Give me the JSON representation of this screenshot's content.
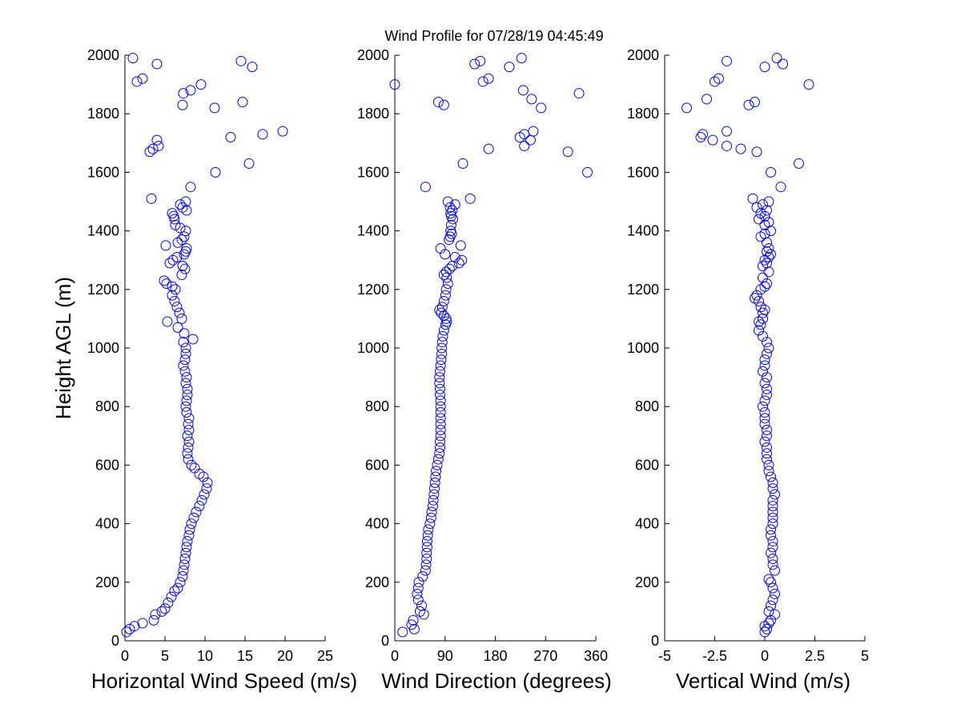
{
  "figure": {
    "title": "Wind Profile for  07/28/19 04:45:49",
    "ylabel": "Height AGL (m)",
    "marker_color": "#0000ff"
  },
  "chart_data": [
    {
      "type": "scatter",
      "xlabel": "Horizontal Wind Speed (m/s)",
      "ylabel": "Height AGL (m)",
      "xlim": [
        0,
        25
      ],
      "ylim": [
        0,
        2000
      ],
      "xticks": [
        "0",
        "5",
        "10",
        "15",
        "20",
        "25"
      ],
      "xtick_values": [
        0,
        5,
        10,
        15,
        20,
        25
      ],
      "yticks": [
        "0",
        "200",
        "400",
        "600",
        "800",
        "1000",
        "1200",
        "1400",
        "1600",
        "1800",
        "2000"
      ],
      "ytick_values": [
        0,
        200,
        400,
        600,
        800,
        1000,
        1200,
        1400,
        1600,
        1800,
        2000
      ],
      "grid": false,
      "points": [
        [
          0.2,
          30
        ],
        [
          0.6,
          40
        ],
        [
          1.2,
          50
        ],
        [
          2.2,
          60
        ],
        [
          3.6,
          70
        ],
        [
          3.8,
          90
        ],
        [
          4.6,
          100
        ],
        [
          5.0,
          110
        ],
        [
          5.4,
          130
        ],
        [
          5.8,
          150
        ],
        [
          6.2,
          170
        ],
        [
          6.6,
          180
        ],
        [
          6.9,
          200
        ],
        [
          7.2,
          220
        ],
        [
          7.3,
          240
        ],
        [
          7.4,
          260
        ],
        [
          7.5,
          280
        ],
        [
          7.6,
          300
        ],
        [
          7.7,
          320
        ],
        [
          7.8,
          340
        ],
        [
          8.0,
          360
        ],
        [
          8.1,
          380
        ],
        [
          8.3,
          400
        ],
        [
          8.6,
          420
        ],
        [
          8.9,
          440
        ],
        [
          9.3,
          460
        ],
        [
          9.6,
          480
        ],
        [
          9.9,
          500
        ],
        [
          10.2,
          520
        ],
        [
          10.3,
          540
        ],
        [
          9.8,
          560
        ],
        [
          9.3,
          570
        ],
        [
          8.7,
          590
        ],
        [
          8.3,
          600
        ],
        [
          7.9,
          620
        ],
        [
          7.8,
          640
        ],
        [
          7.9,
          660
        ],
        [
          8.0,
          680
        ],
        [
          7.8,
          700
        ],
        [
          8.0,
          720
        ],
        [
          7.9,
          740
        ],
        [
          8.0,
          760
        ],
        [
          7.7,
          780
        ],
        [
          7.6,
          800
        ],
        [
          7.7,
          820
        ],
        [
          7.8,
          840
        ],
        [
          7.8,
          860
        ],
        [
          7.6,
          880
        ],
        [
          7.7,
          900
        ],
        [
          7.5,
          920
        ],
        [
          7.3,
          940
        ],
        [
          7.5,
          960
        ],
        [
          7.6,
          980
        ],
        [
          7.6,
          1000
        ],
        [
          7.3,
          1020
        ],
        [
          8.5,
          1030
        ],
        [
          7.4,
          1050
        ],
        [
          6.6,
          1070
        ],
        [
          5.3,
          1090
        ],
        [
          7.1,
          1100
        ],
        [
          6.8,
          1120
        ],
        [
          6.5,
          1140
        ],
        [
          6.2,
          1160
        ],
        [
          5.9,
          1180
        ],
        [
          6.3,
          1200
        ],
        [
          5.9,
          1210
        ],
        [
          5.2,
          1220
        ],
        [
          4.9,
          1230
        ],
        [
          7.1,
          1250
        ],
        [
          7.5,
          1270
        ],
        [
          7.2,
          1280
        ],
        [
          5.6,
          1290
        ],
        [
          6.0,
          1300
        ],
        [
          6.5,
          1310
        ],
        [
          7.4,
          1320
        ],
        [
          7.6,
          1330
        ],
        [
          7.7,
          1340
        ],
        [
          5.1,
          1350
        ],
        [
          6.6,
          1360
        ],
        [
          7.1,
          1370
        ],
        [
          7.4,
          1380
        ],
        [
          7.6,
          1400
        ],
        [
          6.9,
          1410
        ],
        [
          6.3,
          1420
        ],
        [
          6.2,
          1440
        ],
        [
          6.1,
          1450
        ],
        [
          5.9,
          1460
        ],
        [
          7.7,
          1470
        ],
        [
          7.2,
          1480
        ],
        [
          6.9,
          1490
        ],
        [
          7.6,
          1500
        ],
        [
          3.3,
          1510
        ],
        [
          8.2,
          1550
        ],
        [
          11.3,
          1600
        ],
        [
          15.5,
          1630
        ],
        [
          3.1,
          1670
        ],
        [
          3.5,
          1680
        ],
        [
          4.2,
          1690
        ],
        [
          4.0,
          1710
        ],
        [
          13.2,
          1720
        ],
        [
          17.2,
          1730
        ],
        [
          19.7,
          1740
        ],
        [
          14.7,
          1840
        ],
        [
          11.2,
          1820
        ],
        [
          7.2,
          1830
        ],
        [
          7.3,
          1870
        ],
        [
          8.2,
          1880
        ],
        [
          9.5,
          1900
        ],
        [
          1.5,
          1910
        ],
        [
          2.2,
          1920
        ],
        [
          4.0,
          1970
        ],
        [
          14.5,
          1980
        ],
        [
          15.9,
          1960
        ],
        [
          1.0,
          1990
        ]
      ]
    },
    {
      "type": "scatter",
      "xlabel": "Wind Direction (degrees)",
      "ylabel": "",
      "xlim": [
        0,
        360
      ],
      "ylim": [
        0,
        2000
      ],
      "xticks": [
        "0",
        "90",
        "180",
        "270",
        "360"
      ],
      "xtick_values": [
        0,
        90,
        180,
        270,
        360
      ],
      "yticks": [
        "0",
        "200",
        "400",
        "600",
        "800",
        "1000",
        "1200",
        "1400",
        "1600",
        "1800",
        "2000"
      ],
      "ytick_values": [
        0,
        200,
        400,
        600,
        800,
        1000,
        1200,
        1400,
        1600,
        1800,
        2000
      ],
      "grid": false,
      "points": [
        [
          14,
          30
        ],
        [
          35,
          40
        ],
        [
          30,
          55
        ],
        [
          33,
          70
        ],
        [
          52,
          90
        ],
        [
          45,
          100
        ],
        [
          48,
          120
        ],
        [
          42,
          140
        ],
        [
          40,
          160
        ],
        [
          42,
          180
        ],
        [
          43,
          200
        ],
        [
          50,
          220
        ],
        [
          55,
          240
        ],
        [
          56,
          260
        ],
        [
          57,
          280
        ],
        [
          57,
          300
        ],
        [
          58,
          320
        ],
        [
          58,
          340
        ],
        [
          59,
          360
        ],
        [
          60,
          380
        ],
        [
          63,
          400
        ],
        [
          65,
          420
        ],
        [
          66,
          440
        ],
        [
          68,
          460
        ],
        [
          69,
          480
        ],
        [
          70,
          500
        ],
        [
          71,
          520
        ],
        [
          72,
          540
        ],
        [
          73,
          560
        ],
        [
          74,
          580
        ],
        [
          76,
          600
        ],
        [
          78,
          620
        ],
        [
          80,
          640
        ],
        [
          81,
          660
        ],
        [
          81,
          680
        ],
        [
          82,
          700
        ],
        [
          82,
          720
        ],
        [
          82,
          740
        ],
        [
          82,
          760
        ],
        [
          82,
          780
        ],
        [
          82,
          800
        ],
        [
          82,
          820
        ],
        [
          81,
          840
        ],
        [
          81,
          860
        ],
        [
          80,
          880
        ],
        [
          80,
          900
        ],
        [
          81,
          920
        ],
        [
          82,
          940
        ],
        [
          83,
          960
        ],
        [
          84,
          980
        ],
        [
          84,
          1000
        ],
        [
          85,
          1020
        ],
        [
          86,
          1040
        ],
        [
          88,
          1060
        ],
        [
          91,
          1080
        ],
        [
          93,
          1090
        ],
        [
          92,
          1100
        ],
        [
          88,
          1110
        ],
        [
          83,
          1120
        ],
        [
          80,
          1130
        ],
        [
          85,
          1140
        ],
        [
          88,
          1160
        ],
        [
          91,
          1180
        ],
        [
          92,
          1200
        ],
        [
          95,
          1220
        ],
        [
          93,
          1240
        ],
        [
          88,
          1250
        ],
        [
          92,
          1260
        ],
        [
          98,
          1270
        ],
        [
          103,
          1280
        ],
        [
          115,
          1290
        ],
        [
          120,
          1300
        ],
        [
          108,
          1310
        ],
        [
          90,
          1320
        ],
        [
          82,
          1340
        ],
        [
          118,
          1350
        ],
        [
          97,
          1370
        ],
        [
          99,
          1380
        ],
        [
          102,
          1390
        ],
        [
          100,
          1400
        ],
        [
          101,
          1420
        ],
        [
          104,
          1440
        ],
        [
          101,
          1450
        ],
        [
          100,
          1460
        ],
        [
          103,
          1470
        ],
        [
          99,
          1480
        ],
        [
          108,
          1490
        ],
        [
          95,
          1500
        ],
        [
          135,
          1510
        ],
        [
          55,
          1550
        ],
        [
          345,
          1600
        ],
        [
          122,
          1630
        ],
        [
          310,
          1670
        ],
        [
          168,
          1680
        ],
        [
          232,
          1690
        ],
        [
          243,
          1710
        ],
        [
          224,
          1720
        ],
        [
          232,
          1730
        ],
        [
          248,
          1740
        ],
        [
          88,
          1830
        ],
        [
          78,
          1840
        ],
        [
          245,
          1850
        ],
        [
          262,
          1820
        ],
        [
          330,
          1870
        ],
        [
          230,
          1880
        ],
        [
          0,
          1900
        ],
        [
          158,
          1910
        ],
        [
          168,
          1920
        ],
        [
          143,
          1970
        ],
        [
          153,
          1980
        ],
        [
          205,
          1960
        ],
        [
          227,
          1990
        ]
      ]
    },
    {
      "type": "scatter",
      "xlabel": "Vertical Wind (m/s)",
      "ylabel": "",
      "xlim": [
        -5,
        5
      ],
      "ylim": [
        0,
        2000
      ],
      "xticks": [
        "-5",
        "-2.5",
        "0",
        "2.5",
        "5"
      ],
      "xtick_values": [
        -5,
        -2.5,
        0,
        2.5,
        5
      ],
      "yticks": [
        "0",
        "200",
        "400",
        "600",
        "800",
        "1000",
        "1200",
        "1400",
        "1600",
        "1800",
        "2000"
      ],
      "ytick_values": [
        0,
        200,
        400,
        600,
        800,
        1000,
        1200,
        1400,
        1600,
        1800,
        2000
      ],
      "grid": false,
      "points": [
        [
          0.0,
          30
        ],
        [
          0.1,
          40
        ],
        [
          0.0,
          50
        ],
        [
          0.2,
          60
        ],
        [
          0.3,
          70
        ],
        [
          0.5,
          90
        ],
        [
          0.2,
          100
        ],
        [
          0.3,
          120
        ],
        [
          0.4,
          140
        ],
        [
          0.5,
          160
        ],
        [
          0.4,
          180
        ],
        [
          0.3,
          200
        ],
        [
          0.2,
          210
        ],
        [
          0.5,
          240
        ],
        [
          0.4,
          260
        ],
        [
          0.4,
          280
        ],
        [
          0.3,
          300
        ],
        [
          0.4,
          320
        ],
        [
          0.4,
          340
        ],
        [
          0.3,
          360
        ],
        [
          0.3,
          380
        ],
        [
          0.4,
          400
        ],
        [
          0.4,
          420
        ],
        [
          0.4,
          440
        ],
        [
          0.4,
          460
        ],
        [
          0.4,
          480
        ],
        [
          0.5,
          500
        ],
        [
          0.4,
          520
        ],
        [
          0.4,
          540
        ],
        [
          0.3,
          560
        ],
        [
          0.2,
          580
        ],
        [
          0.2,
          600
        ],
        [
          0.1,
          620
        ],
        [
          0.1,
          640
        ],
        [
          0.1,
          660
        ],
        [
          0.0,
          680
        ],
        [
          0.1,
          700
        ],
        [
          0.1,
          720
        ],
        [
          0.0,
          740
        ],
        [
          0.0,
          760
        ],
        [
          0.0,
          780
        ],
        [
          -0.1,
          800
        ],
        [
          0.0,
          820
        ],
        [
          0.1,
          840
        ],
        [
          0.1,
          860
        ],
        [
          0.0,
          880
        ],
        [
          0.1,
          900
        ],
        [
          -0.1,
          920
        ],
        [
          0.0,
          940
        ],
        [
          0.0,
          960
        ],
        [
          0.1,
          980
        ],
        [
          0.2,
          1000
        ],
        [
          0.1,
          1020
        ],
        [
          -0.1,
          1040
        ],
        [
          -0.3,
          1060
        ],
        [
          -0.2,
          1080
        ],
        [
          -0.3,
          1090
        ],
        [
          -0.1,
          1100
        ],
        [
          -0.1,
          1120
        ],
        [
          0.0,
          1130
        ],
        [
          -0.2,
          1140
        ],
        [
          -0.3,
          1160
        ],
        [
          -0.5,
          1170
        ],
        [
          -0.4,
          1180
        ],
        [
          -0.2,
          1200
        ],
        [
          0.0,
          1210
        ],
        [
          0.1,
          1220
        ],
        [
          -0.1,
          1240
        ],
        [
          0.2,
          1260
        ],
        [
          -0.1,
          1280
        ],
        [
          0.1,
          1290
        ],
        [
          0.0,
          1300
        ],
        [
          0.2,
          1310
        ],
        [
          0.3,
          1320
        ],
        [
          0.1,
          1330
        ],
        [
          0.2,
          1340
        ],
        [
          0.1,
          1360
        ],
        [
          -0.2,
          1380
        ],
        [
          0.0,
          1390
        ],
        [
          0.3,
          1400
        ],
        [
          0.0,
          1420
        ],
        [
          0.2,
          1430
        ],
        [
          -0.3,
          1440
        ],
        [
          0.0,
          1450
        ],
        [
          -0.2,
          1460
        ],
        [
          0.1,
          1470
        ],
        [
          -0.4,
          1480
        ],
        [
          -0.1,
          1490
        ],
        [
          0.2,
          1500
        ],
        [
          -0.6,
          1510
        ],
        [
          0.8,
          1550
        ],
        [
          0.3,
          1600
        ],
        [
          1.7,
          1630
        ],
        [
          -0.4,
          1670
        ],
        [
          -1.2,
          1680
        ],
        [
          -1.9,
          1690
        ],
        [
          -2.6,
          1710
        ],
        [
          -3.2,
          1720
        ],
        [
          -3.1,
          1730
        ],
        [
          -1.9,
          1740
        ],
        [
          -3.9,
          1820
        ],
        [
          -0.8,
          1830
        ],
        [
          -0.5,
          1840
        ],
        [
          -2.9,
          1850
        ],
        [
          2.2,
          1900
        ],
        [
          -2.5,
          1910
        ],
        [
          -2.3,
          1920
        ],
        [
          0.0,
          1960
        ],
        [
          0.9,
          1970
        ],
        [
          -1.9,
          1980
        ],
        [
          0.6,
          1990
        ]
      ]
    }
  ]
}
